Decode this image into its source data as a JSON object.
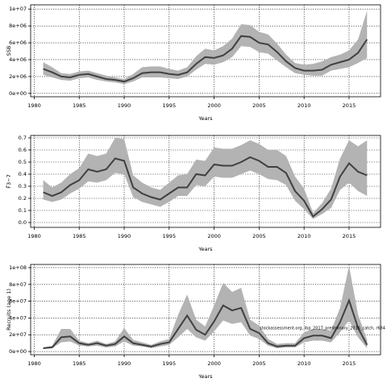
{
  "chart_data": [
    {
      "type": "line",
      "x_label": "Years",
      "y_label": "SSB",
      "x": [
        1981,
        1982,
        1983,
        1984,
        1985,
        1986,
        1987,
        1988,
        1989,
        1990,
        1991,
        1992,
        1993,
        1994,
        1995,
        1996,
        1997,
        1998,
        1999,
        2000,
        2001,
        2002,
        2003,
        2004,
        2005,
        2006,
        2007,
        2008,
        2009,
        2010,
        2011,
        2012,
        2013,
        2014,
        2015,
        2016,
        2017
      ],
      "values": [
        2900000.0,
        2500000.0,
        2000000.0,
        1900000.0,
        2200000.0,
        2300000.0,
        2000000.0,
        1700000.0,
        1600000.0,
        1400000.0,
        1800000.0,
        2400000.0,
        2500000.0,
        2500000.0,
        2300000.0,
        2200000.0,
        2500000.0,
        3500000.0,
        4300000.0,
        4200000.0,
        4500000.0,
        5300000.0,
        6800000.0,
        6700000.0,
        6000000.0,
        5800000.0,
        4900000.0,
        3800000.0,
        3000000.0,
        2700000.0,
        2700000.0,
        2800000.0,
        3400000.0,
        3700000.0,
        4000000.0,
        4800000.0,
        6400000.0
      ],
      "upper": [
        3700000.0,
        3100000.0,
        2400000.0,
        2300000.0,
        2600000.0,
        2700000.0,
        2400000.0,
        2100000.0,
        1900000.0,
        1700000.0,
        2300000.0,
        3100000.0,
        3200000.0,
        3200000.0,
        2900000.0,
        2700000.0,
        3100000.0,
        4400000.0,
        5300000.0,
        5100000.0,
        5600000.0,
        6500000.0,
        8200000.0,
        8100000.0,
        7300000.0,
        7000000.0,
        5900000.0,
        4600000.0,
        3600000.0,
        3400000.0,
        3500000.0,
        3800000.0,
        4300000.0,
        4600000.0,
        5100000.0,
        6400000.0,
        9800000.0
      ],
      "lower": [
        2200000.0,
        1900000.0,
        1600000.0,
        1500000.0,
        1800000.0,
        1900000.0,
        1600000.0,
        1400000.0,
        1300000.0,
        1100000.0,
        1400000.0,
        1900000.0,
        1900000.0,
        1900000.0,
        1800000.0,
        1700000.0,
        2000000.0,
        2800000.0,
        3500000.0,
        3400000.0,
        3700000.0,
        4300000.0,
        5600000.0,
        5500000.0,
        4900000.0,
        4700000.0,
        3900000.0,
        3100000.0,
        2400000.0,
        2200000.0,
        2100000.0,
        2100000.0,
        2700000.0,
        2900000.0,
        3100000.0,
        3600000.0,
        4200000.0
      ],
      "color": "#404040",
      "band_color": "#b3b3b3",
      "xlim": [
        1979.6,
        2018.5
      ],
      "xticks": [
        1980,
        1985,
        1990,
        1995,
        2000,
        2005,
        2010,
        2015
      ],
      "ylim": [
        -400000.0,
        10500000.0
      ],
      "yticks": [
        {
          "value": 0,
          "label": "0e+00"
        },
        {
          "value": 2000000.0,
          "label": "2e+06"
        },
        {
          "value": 4000000.0,
          "label": "4e+06"
        },
        {
          "value": 6000000.0,
          "label": "6e+06"
        },
        {
          "value": 8000000.0,
          "label": "8e+06"
        },
        {
          "value": 10000000.0,
          "label": "1e+07"
        }
      ],
      "grid": true
    },
    {
      "type": "line",
      "x_label": "Years",
      "y_label": "F̄3−7",
      "x": [
        1981,
        1982,
        1983,
        1984,
        1985,
        1986,
        1987,
        1988,
        1989,
        1990,
        1991,
        1992,
        1993,
        1994,
        1995,
        1996,
        1997,
        1998,
        1999,
        2000,
        2001,
        2002,
        2003,
        2004,
        2005,
        2006,
        2007,
        2008,
        2009,
        2010,
        2011,
        2012,
        2013,
        2014,
        2015,
        2016,
        2017
      ],
      "values": [
        0.25,
        0.22,
        0.25,
        0.31,
        0.35,
        0.44,
        0.42,
        0.44,
        0.53,
        0.51,
        0.29,
        0.24,
        0.21,
        0.19,
        0.24,
        0.29,
        0.29,
        0.4,
        0.39,
        0.48,
        0.47,
        0.47,
        0.5,
        0.54,
        0.51,
        0.46,
        0.46,
        0.41,
        0.26,
        0.18,
        0.05,
        0.11,
        0.19,
        0.38,
        0.49,
        0.42,
        0.39
      ],
      "upper": [
        0.35,
        0.29,
        0.33,
        0.4,
        0.45,
        0.57,
        0.55,
        0.57,
        0.7,
        0.69,
        0.39,
        0.33,
        0.29,
        0.27,
        0.33,
        0.39,
        0.4,
        0.52,
        0.51,
        0.62,
        0.61,
        0.61,
        0.64,
        0.68,
        0.65,
        0.6,
        0.6,
        0.55,
        0.38,
        0.28,
        0.08,
        0.16,
        0.28,
        0.53,
        0.68,
        0.63,
        0.68
      ],
      "lower": [
        0.19,
        0.17,
        0.19,
        0.24,
        0.28,
        0.34,
        0.33,
        0.35,
        0.41,
        0.4,
        0.21,
        0.17,
        0.15,
        0.13,
        0.17,
        0.22,
        0.22,
        0.31,
        0.3,
        0.38,
        0.37,
        0.37,
        0.4,
        0.43,
        0.4,
        0.36,
        0.35,
        0.31,
        0.18,
        0.11,
        0.03,
        0.07,
        0.12,
        0.27,
        0.33,
        0.26,
        0.22
      ],
      "color": "#404040",
      "band_color": "#b3b3b3",
      "xlim": [
        1979.6,
        2018.5
      ],
      "xticks": [
        1980,
        1985,
        1990,
        1995,
        2000,
        2005,
        2010,
        2015
      ],
      "ylim": [
        -0.04,
        0.72
      ],
      "yticks": [
        {
          "value": 0,
          "label": "0.0"
        },
        0.1,
        0.2,
        0.3,
        0.4,
        0.5,
        0.6,
        0.7
      ],
      "grid": true
    },
    {
      "type": "line",
      "x_label": "Years",
      "y_label": "Recruits (age 1)",
      "annotation": "stockassessment.org, ibp_2017_preliminary_2016_catch, r684",
      "x": [
        1981,
        1982,
        1983,
        1984,
        1985,
        1986,
        1987,
        1988,
        1989,
        1990,
        1991,
        1992,
        1993,
        1994,
        1995,
        1996,
        1997,
        1998,
        1999,
        2000,
        2001,
        2002,
        2003,
        2004,
        2005,
        2006,
        2007,
        2008,
        2009,
        2010,
        2011,
        2012,
        2013,
        2014,
        2015,
        2016,
        2017
      ],
      "values": [
        4000000.0,
        5000000.0,
        17000000.0,
        18000000.0,
        10000000.0,
        8000000.0,
        10000000.0,
        7000000.0,
        9000000.0,
        18000000.0,
        10000000.0,
        8000000.0,
        6000000.0,
        9000000.0,
        11000000.0,
        27000000.0,
        43000000.0,
        26000000.0,
        20000000.0,
        36000000.0,
        55000000.0,
        49000000.0,
        52000000.0,
        27000000.0,
        22000000.0,
        10000000.0,
        6000000.0,
        7000000.0,
        7000000.0,
        16000000.0,
        19000000.0,
        19000000.0,
        16000000.0,
        35000000.0,
        61000000.0,
        28000000.0,
        8000000.0
      ],
      "upper": [
        5000000.0,
        7000000.0,
        27000000.0,
        27000000.0,
        13000000.0,
        10000000.0,
        13000000.0,
        9000000.0,
        12000000.0,
        28000000.0,
        14000000.0,
        11000000.0,
        8000000.0,
        12000000.0,
        15000000.0,
        44000000.0,
        68000000.0,
        38000000.0,
        30000000.0,
        55000000.0,
        82000000.0,
        71000000.0,
        76000000.0,
        38000000.0,
        31000000.0,
        15000000.0,
        9000000.0,
        10000000.0,
        10000000.0,
        23000000.0,
        27000000.0,
        27000000.0,
        25000000.0,
        52000000.0,
        102000000.0,
        44000000.0,
        14000000.0
      ],
      "lower": [
        3000000.0,
        4000000.0,
        11000000.0,
        12000000.0,
        7000000.0,
        6000000.0,
        7000000.0,
        5000000.0,
        6000000.0,
        12000000.0,
        7000000.0,
        6000000.0,
        4000000.0,
        6000000.0,
        8000000.0,
        17000000.0,
        27000000.0,
        17000000.0,
        13000000.0,
        24000000.0,
        37000000.0,
        33000000.0,
        35000000.0,
        19000000.0,
        15000000.0,
        7000000.0,
        4000000.0,
        5000000.0,
        5000000.0,
        11000000.0,
        13000000.0,
        13000000.0,
        11000000.0,
        23000000.0,
        37000000.0,
        17000000.0,
        4000000.0
      ],
      "color": "#404040",
      "band_color": "#b3b3b3",
      "xlim": [
        1979.6,
        2018.5
      ],
      "xticks": [
        1980,
        1985,
        1990,
        1995,
        2000,
        2005,
        2010,
        2015
      ],
      "ylim": [
        -3800000.0,
        103800000.0
      ],
      "yticks": [
        {
          "value": 0,
          "label": "0e+00"
        },
        {
          "value": 20000000.0,
          "label": "2e+07"
        },
        {
          "value": 40000000.0,
          "label": "4e+07"
        },
        {
          "value": 60000000.0,
          "label": "6e+07"
        },
        {
          "value": 80000000.0,
          "label": "8e+07"
        },
        {
          "value": 100000000.0,
          "label": "1e+08"
        }
      ],
      "grid": true
    }
  ]
}
